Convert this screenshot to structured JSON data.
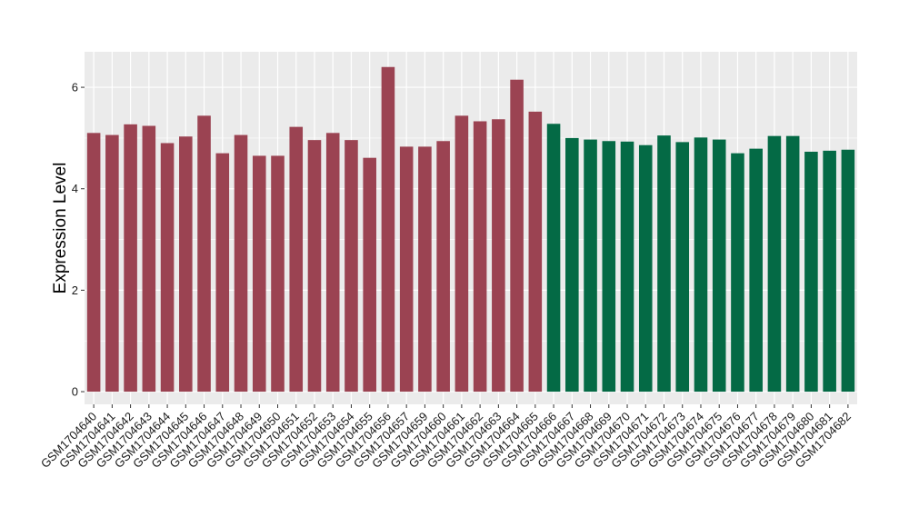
{
  "chart_data": {
    "type": "bar",
    "title": "",
    "xlabel": "",
    "ylabel": "Expression Level",
    "ylim": [
      -0.25,
      6.7
    ],
    "yticks": [
      0,
      2,
      4,
      6
    ],
    "grid": true,
    "colors": {
      "group_a": "#9b4352",
      "group_b": "#046a45",
      "panel": "#ebebeb",
      "grid": "#ffffff"
    },
    "categories": [
      "GSM1704640",
      "GSM1704641",
      "GSM1704642",
      "GSM1704643",
      "GSM1704644",
      "GSM1704645",
      "GSM1704646",
      "GSM1704647",
      "GSM1704648",
      "GSM1704649",
      "GSM1704650",
      "GSM1704651",
      "GSM1704652",
      "GSM1704653",
      "GSM1704654",
      "GSM1704655",
      "GSM1704656",
      "GSM1704657",
      "GSM1704659",
      "GSM1704660",
      "GSM1704661",
      "GSM1704662",
      "GSM1704663",
      "GSM1704664",
      "GSM1704665",
      "GSM1704666",
      "GSM1704667",
      "GSM1704668",
      "GSM1704669",
      "GSM1704670",
      "GSM1704671",
      "GSM1704672",
      "GSM1704673",
      "GSM1704674",
      "GSM1704675",
      "GSM1704676",
      "GSM1704677",
      "GSM1704678",
      "GSM1704679",
      "GSM1704680",
      "GSM1704681",
      "GSM1704682"
    ],
    "values": [
      5.1,
      5.06,
      5.27,
      5.24,
      4.9,
      5.03,
      5.44,
      4.7,
      5.06,
      4.65,
      4.65,
      5.22,
      4.96,
      5.1,
      4.96,
      4.61,
      6.4,
      4.83,
      4.83,
      4.94,
      5.44,
      5.33,
      5.37,
      6.15,
      5.52,
      5.28,
      5.0,
      4.97,
      4.94,
      4.93,
      4.86,
      5.05,
      4.92,
      5.01,
      4.97,
      4.7,
      4.79,
      5.04,
      5.04,
      4.73,
      4.75,
      4.77
    ],
    "groups": [
      "a",
      "a",
      "a",
      "a",
      "a",
      "a",
      "a",
      "a",
      "a",
      "a",
      "a",
      "a",
      "a",
      "a",
      "a",
      "a",
      "a",
      "a",
      "a",
      "a",
      "a",
      "a",
      "a",
      "a",
      "a",
      "b",
      "b",
      "b",
      "b",
      "b",
      "b",
      "b",
      "b",
      "b",
      "b",
      "b",
      "b",
      "b",
      "b",
      "b",
      "b",
      "b"
    ]
  }
}
